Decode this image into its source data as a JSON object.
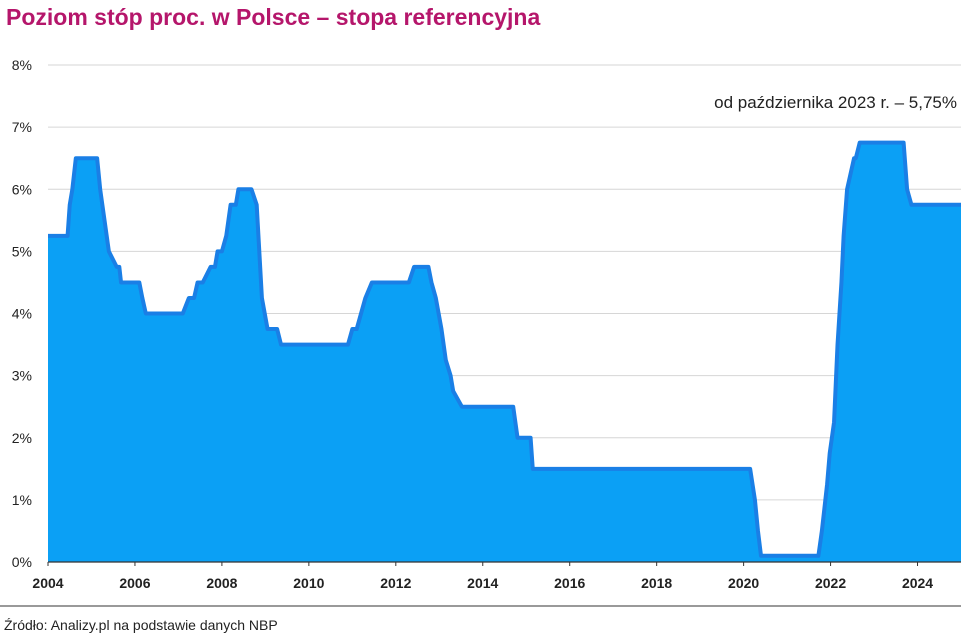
{
  "chart_data": {
    "type": "area",
    "title": "Poziom stóp proc. w Polsce – stopa referencyjna",
    "annotation": "od października 2023 r. – 5,75%",
    "source": "Źródło: Analizy.pl na podstawie danych NBP",
    "xlim": [
      2004,
      2025
    ],
    "ylim": [
      0,
      8
    ],
    "y_ticks": [
      0,
      1,
      2,
      3,
      4,
      5,
      6,
      7,
      8
    ],
    "y_tick_labels": [
      "0%",
      "1%",
      "2%",
      "3%",
      "4%",
      "5%",
      "6%",
      "7%",
      "8%"
    ],
    "x_ticks": [
      2004,
      2006,
      2008,
      2010,
      2012,
      2014,
      2016,
      2018,
      2020,
      2022,
      2024
    ],
    "x_tick_labels": [
      "2004",
      "2006",
      "2008",
      "2010",
      "2012",
      "2014",
      "2016",
      "2018",
      "2020",
      "2022",
      "2024"
    ],
    "grid": true,
    "fill_color": "#0ba0f5",
    "line_color": "#1a7fe6",
    "title_color": "#b5166b",
    "series": [
      {
        "x": [
          2004.0,
          2004.45,
          2004.5,
          2004.56,
          2004.64,
          2004.72,
          2005.13,
          2005.2,
          2005.3,
          2005.4,
          2005.58,
          2005.64,
          2005.68,
          2005.75,
          2006.1,
          2006.17,
          2006.25,
          2007.1,
          2007.24,
          2007.36,
          2007.44,
          2007.56,
          2007.74,
          2007.84,
          2007.9,
          2008.0,
          2008.1,
          2008.15,
          2008.2,
          2008.32,
          2008.38,
          2008.68,
          2008.8,
          2008.86,
          2008.92,
          2009.05,
          2009.15,
          2009.27,
          2009.36,
          2009.55,
          2009.68,
          2010.9,
          2011.0,
          2011.1,
          2011.3,
          2011.45,
          2012.3,
          2012.42,
          2012.75,
          2012.82,
          2012.92,
          2013.05,
          2013.15,
          2013.26,
          2013.32,
          2013.52,
          2013.6,
          2014.7,
          2014.8,
          2015.1,
          2015.15,
          2020.15,
          2020.26,
          2020.33,
          2020.4,
          2021.72,
          2021.8,
          2021.92,
          2021.98,
          2022.08,
          2022.16,
          2022.25,
          2022.3,
          2022.38,
          2022.54,
          2022.58,
          2022.67,
          2022.77,
          2023.68,
          2023.76,
          2023.86,
          2025.0
        ],
        "y": [
          5.25,
          5.25,
          5.75,
          6.0,
          6.5,
          6.5,
          6.5,
          6.0,
          5.5,
          5.0,
          4.75,
          4.75,
          4.5,
          4.5,
          4.5,
          4.25,
          4.0,
          4.0,
          4.25,
          4.25,
          4.5,
          4.5,
          4.75,
          4.75,
          5.0,
          5.0,
          5.25,
          5.5,
          5.75,
          5.75,
          6.0,
          6.0,
          5.75,
          5.0,
          4.25,
          3.75,
          3.75,
          3.75,
          3.5,
          3.5,
          3.5,
          3.5,
          3.75,
          3.75,
          4.25,
          4.5,
          4.5,
          4.75,
          4.75,
          4.5,
          4.25,
          3.75,
          3.25,
          3.0,
          2.75,
          2.5,
          2.5,
          2.5,
          2.0,
          2.0,
          1.5,
          1.5,
          1.0,
          0.5,
          0.1,
          0.1,
          0.5,
          1.25,
          1.75,
          2.25,
          3.5,
          4.5,
          5.25,
          6.0,
          6.5,
          6.5,
          6.75,
          6.75,
          6.75,
          6.0,
          5.75,
          5.75
        ]
      }
    ]
  }
}
